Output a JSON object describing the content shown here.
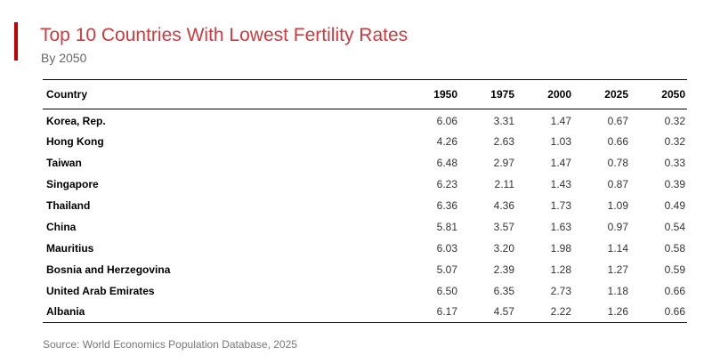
{
  "header": {
    "title": "Top 10 Countries With Lowest Fertility Rates",
    "subtitle": "By 2050"
  },
  "colors": {
    "accent": "#c00000",
    "title": "#d0393e"
  },
  "chart_data": {
    "type": "table",
    "columns": [
      "Country",
      "1950",
      "1975",
      "2000",
      "2025",
      "2050"
    ],
    "rows": [
      [
        "Korea, Rep.",
        "6.06",
        "3.31",
        "1.47",
        "0.67",
        "0.32"
      ],
      [
        "Hong Kong",
        "4.26",
        "2.63",
        "1.03",
        "0.66",
        "0.32"
      ],
      [
        "Taiwan",
        "6.48",
        "2.97",
        "1.47",
        "0.78",
        "0.33"
      ],
      [
        "Singapore",
        "6.23",
        "2.11",
        "1.43",
        "0.87",
        "0.39"
      ],
      [
        "Thailand",
        "6.36",
        "4.36",
        "1.73",
        "1.09",
        "0.49"
      ],
      [
        "China",
        "5.81",
        "3.57",
        "1.63",
        "0.97",
        "0.54"
      ],
      [
        "Mauritius",
        "6.03",
        "3.20",
        "1.98",
        "1.14",
        "0.58"
      ],
      [
        "Bosnia and Herzegovina",
        "5.07",
        "2.39",
        "1.28",
        "1.27",
        "0.59"
      ],
      [
        "United Arab Emirates",
        "6.50",
        "6.35",
        "2.73",
        "1.18",
        "0.66"
      ],
      [
        "Albania",
        "6.17",
        "4.57",
        "2.22",
        "1.26",
        "0.66"
      ]
    ]
  },
  "footer": {
    "source": "Source: World Economics Population Database, 2025"
  }
}
